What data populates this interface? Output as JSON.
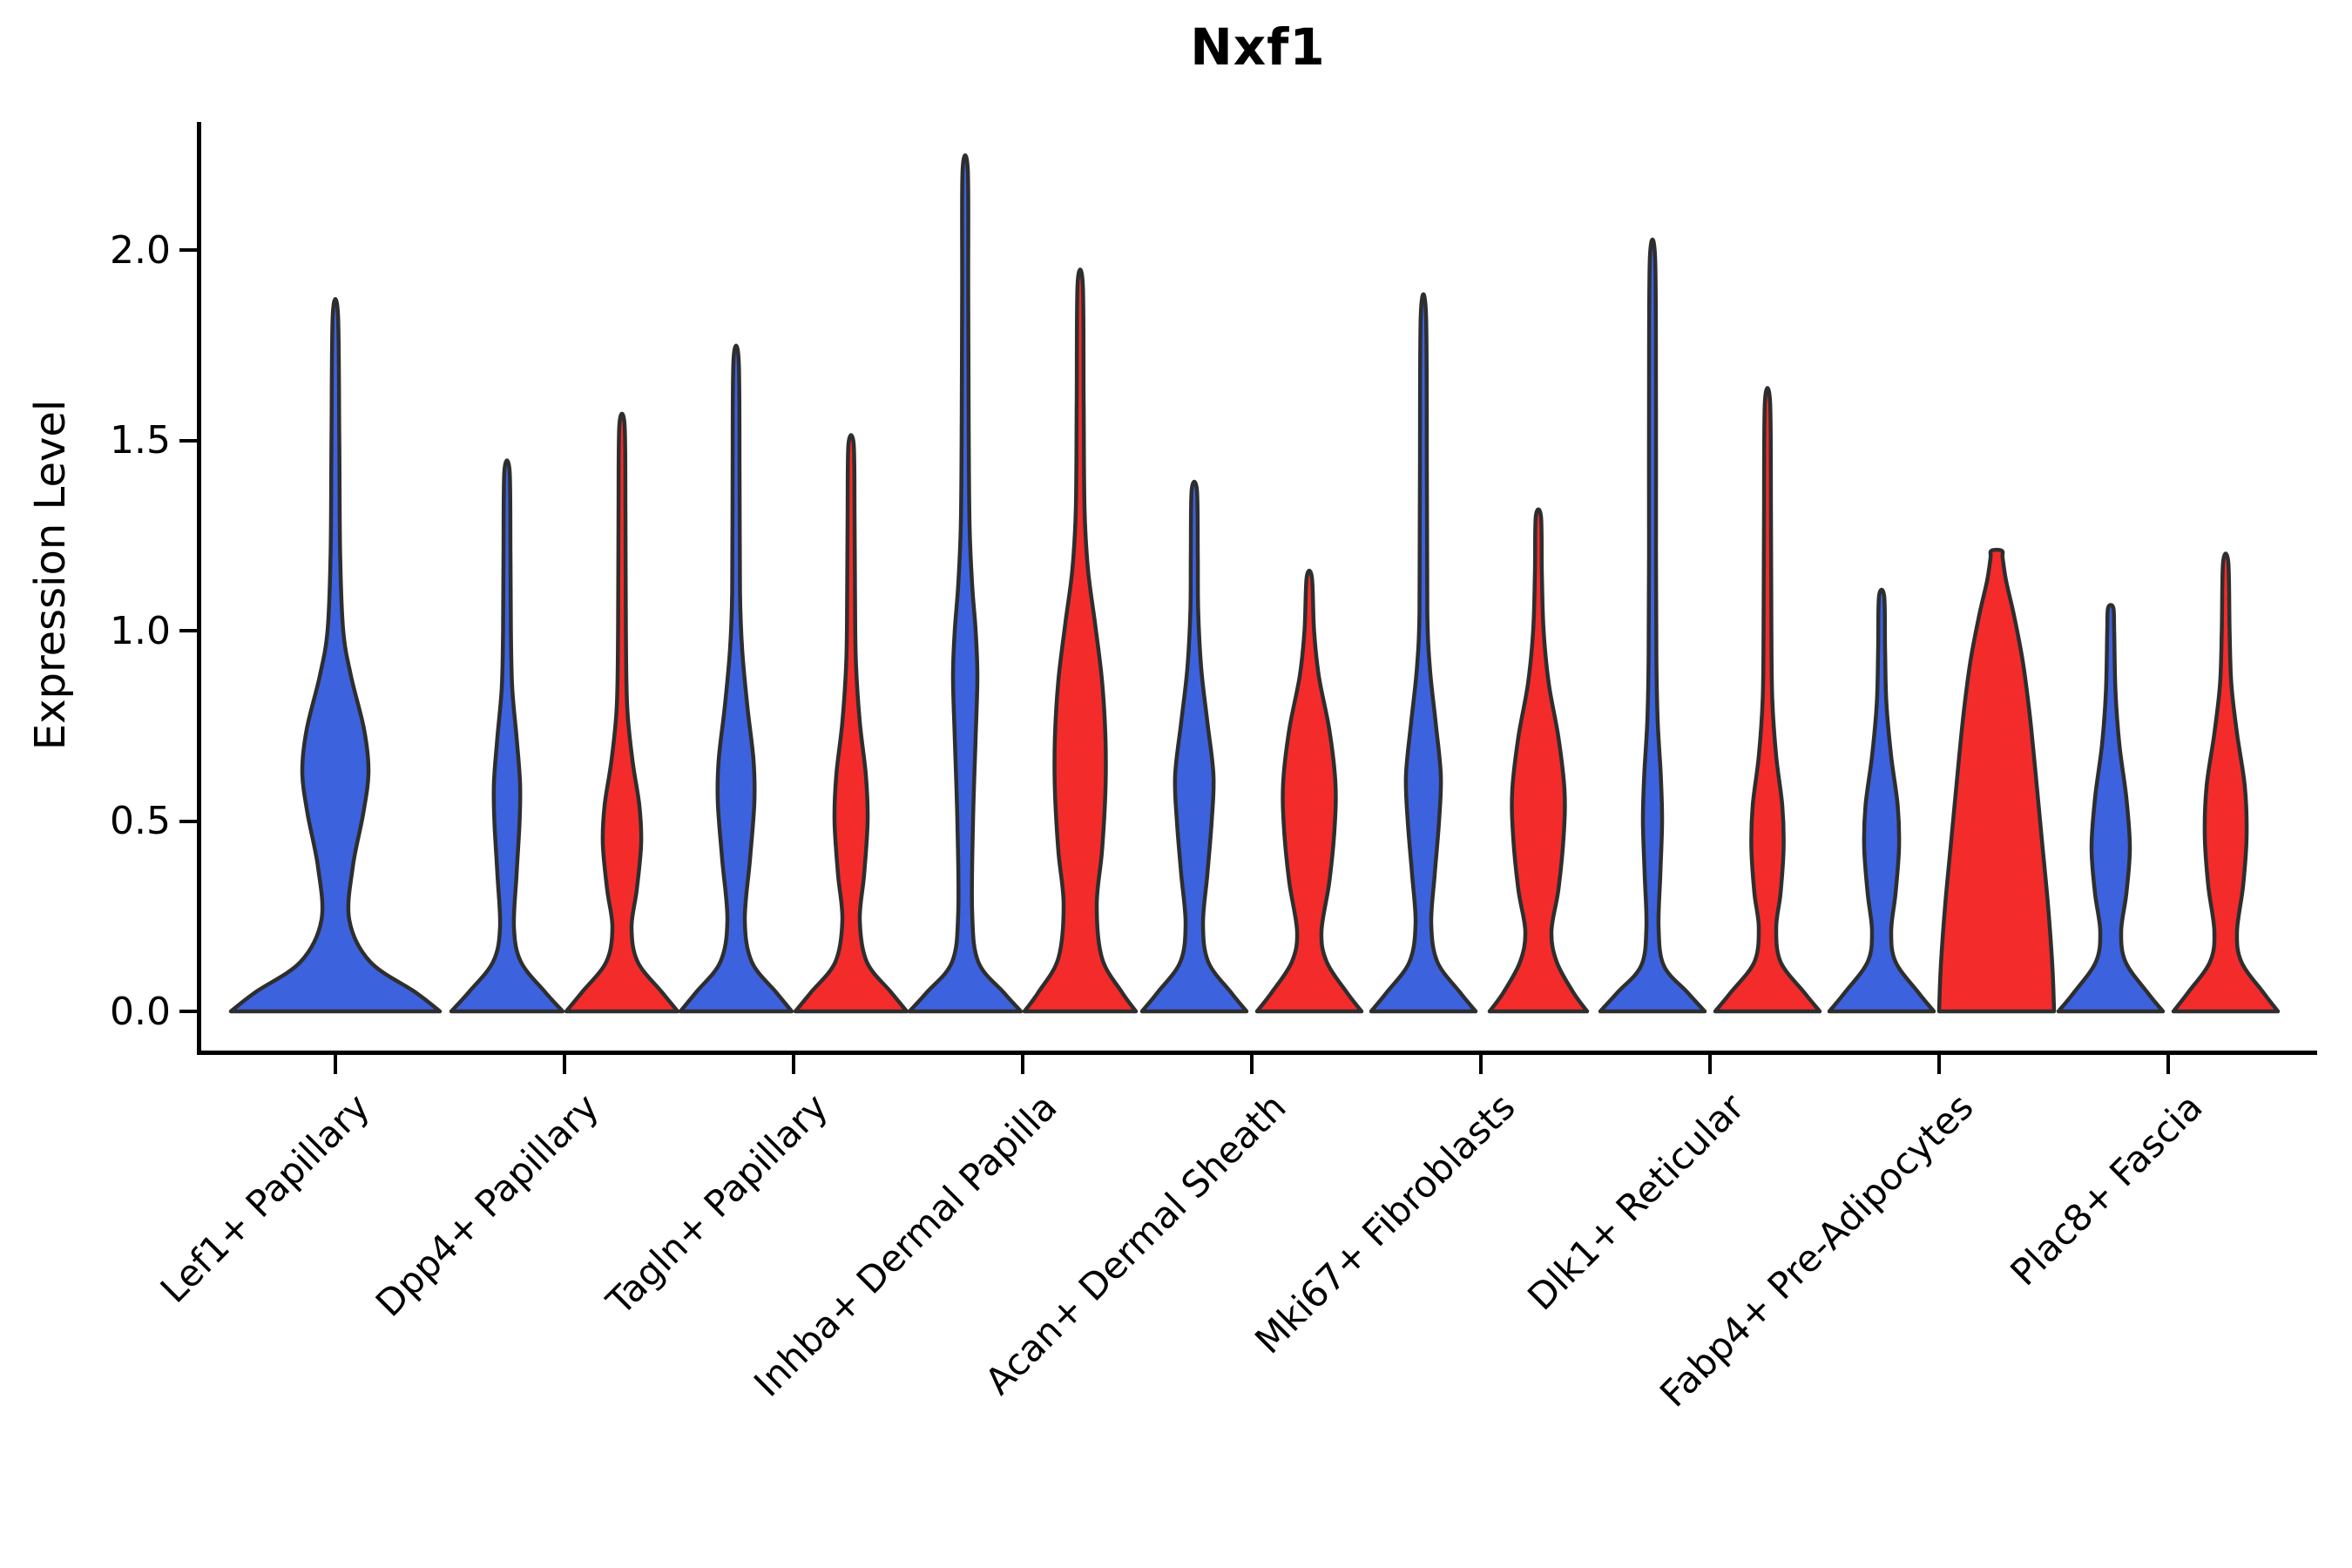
{
  "colors": {
    "blue": "#3D62DE",
    "red": "#F42B2B",
    "outline": "#2E2E2E",
    "axis": "#000000",
    "background": "#FFFFFF"
  },
  "chart_data": {
    "type": "violin",
    "title": "Nxf1",
    "xlabel": "",
    "ylabel": "Expression Level",
    "ylim": [
      0,
      2.34
    ],
    "yticks": [
      0.0,
      0.5,
      1.0,
      1.5,
      2.0
    ],
    "ytick_labels": [
      "0.0",
      "0.5",
      "1.0",
      "1.5",
      "2.0"
    ],
    "legend": "none",
    "grid": false,
    "categories": [
      "Lef1+ Papillary",
      "Dpp4+ Papillary",
      "Tagln+ Papillary",
      "Inhba+ Dermal Papilla",
      "Acan+ Dermal Sheath",
      "Mki67+ Fibroblasts",
      "Dlk1+ Reticular",
      "Fabp4+ Pre-Adipocytes",
      "Plac8+ Fascia"
    ],
    "series": [
      {
        "name": "blue",
        "max_expression": [
          1.83,
          1.42,
          1.71,
          2.21,
          1.37,
          1.83,
          1.98,
          1.09,
          1.06
        ]
      },
      {
        "name": "red",
        "max_expression": [
          null,
          1.54,
          1.49,
          1.91,
          1.14,
          1.3,
          1.6,
          1.21,
          1.18
        ]
      }
    ],
    "violins": [
      {
        "category": "Lef1+ Papillary",
        "group": 0,
        "side": "single",
        "color": "blue",
        "max": 1.83,
        "profile": [
          [
            0,
            120
          ],
          [
            0.05,
            92
          ],
          [
            0.13,
            40
          ],
          [
            0.24,
            16
          ],
          [
            0.38,
            20
          ],
          [
            0.52,
            32
          ],
          [
            0.63,
            38
          ],
          [
            0.74,
            33
          ],
          [
            0.88,
            18
          ],
          [
            1.0,
            9
          ],
          [
            1.2,
            5.5
          ],
          [
            1.5,
            4.5
          ],
          [
            1.83,
            3
          ]
        ]
      },
      {
        "category": "Dpp4+ Papillary",
        "group": 1,
        "side": "left",
        "color": "blue",
        "max": 1.42,
        "profile": [
          [
            0,
            64
          ],
          [
            0.05,
            44
          ],
          [
            0.13,
            16
          ],
          [
            0.22,
            8
          ],
          [
            0.36,
            11
          ],
          [
            0.5,
            14.5
          ],
          [
            0.6,
            15
          ],
          [
            0.72,
            11
          ],
          [
            0.85,
            6
          ],
          [
            1.0,
            4.5
          ],
          [
            1.2,
            4
          ],
          [
            1.42,
            3
          ]
        ]
      },
      {
        "category": "Dpp4+ Papillary",
        "group": 1,
        "side": "right",
        "color": "red",
        "max": 1.54,
        "profile": [
          [
            0,
            64
          ],
          [
            0.05,
            46
          ],
          [
            0.13,
            18
          ],
          [
            0.22,
            11
          ],
          [
            0.32,
            17
          ],
          [
            0.44,
            22
          ],
          [
            0.54,
            20
          ],
          [
            0.66,
            12
          ],
          [
            0.8,
            6
          ],
          [
            1.0,
            4.5
          ],
          [
            1.3,
            4
          ],
          [
            1.54,
            3
          ]
        ]
      },
      {
        "category": "Tagln+ Papillary",
        "group": 2,
        "side": "left",
        "color": "blue",
        "max": 1.71,
        "profile": [
          [
            0,
            64
          ],
          [
            0.05,
            46
          ],
          [
            0.13,
            18
          ],
          [
            0.24,
            10
          ],
          [
            0.4,
            16
          ],
          [
            0.55,
            21
          ],
          [
            0.66,
            20
          ],
          [
            0.8,
            13
          ],
          [
            0.95,
            7
          ],
          [
            1.1,
            4.5
          ],
          [
            1.4,
            4
          ],
          [
            1.71,
            3
          ]
        ]
      },
      {
        "category": "Tagln+ Papillary",
        "group": 2,
        "side": "right",
        "color": "red",
        "max": 1.49,
        "profile": [
          [
            0,
            64
          ],
          [
            0.05,
            46
          ],
          [
            0.13,
            18
          ],
          [
            0.24,
            10
          ],
          [
            0.36,
            15
          ],
          [
            0.5,
            19
          ],
          [
            0.62,
            17
          ],
          [
            0.76,
            10
          ],
          [
            0.92,
            5.5
          ],
          [
            1.1,
            4.5
          ],
          [
            1.3,
            4
          ],
          [
            1.49,
            3
          ]
        ]
      },
      {
        "category": "Inhba+ Dermal Papilla",
        "group": 3,
        "side": "left",
        "color": "blue",
        "max": 2.21,
        "profile": [
          [
            0,
            64
          ],
          [
            0.05,
            44
          ],
          [
            0.13,
            15
          ],
          [
            0.26,
            8
          ],
          [
            0.5,
            9
          ],
          [
            0.72,
            12
          ],
          [
            0.88,
            14
          ],
          [
            1.0,
            12
          ],
          [
            1.12,
            8
          ],
          [
            1.28,
            5
          ],
          [
            1.55,
            4
          ],
          [
            1.9,
            3.5
          ],
          [
            2.21,
            3
          ]
        ]
      },
      {
        "category": "Inhba+ Dermal Papilla",
        "group": 3,
        "side": "right",
        "color": "red",
        "max": 1.91,
        "profile": [
          [
            0,
            64
          ],
          [
            0.05,
            48
          ],
          [
            0.14,
            25
          ],
          [
            0.28,
            19
          ],
          [
            0.42,
            25
          ],
          [
            0.58,
            29
          ],
          [
            0.72,
            29
          ],
          [
            0.87,
            25
          ],
          [
            1.02,
            17
          ],
          [
            1.16,
            9
          ],
          [
            1.32,
            5
          ],
          [
            1.6,
            4
          ],
          [
            1.91,
            3
          ]
        ]
      },
      {
        "category": "Acan+ Dermal Sheath",
        "group": 4,
        "side": "left",
        "color": "blue",
        "max": 1.37,
        "profile": [
          [
            0,
            60
          ],
          [
            0.05,
            42
          ],
          [
            0.13,
            16
          ],
          [
            0.23,
            10
          ],
          [
            0.36,
            15
          ],
          [
            0.5,
            20
          ],
          [
            0.62,
            22
          ],
          [
            0.76,
            15
          ],
          [
            0.9,
            8
          ],
          [
            1.05,
            4.5
          ],
          [
            1.2,
            4
          ],
          [
            1.37,
            3
          ]
        ]
      },
      {
        "category": "Acan+ Dermal Sheath",
        "group": 4,
        "side": "right",
        "color": "red",
        "max": 1.14,
        "profile": [
          [
            0,
            60
          ],
          [
            0.05,
            43
          ],
          [
            0.13,
            20
          ],
          [
            0.21,
            14
          ],
          [
            0.34,
            23
          ],
          [
            0.48,
            29
          ],
          [
            0.6,
            30
          ],
          [
            0.74,
            23
          ],
          [
            0.88,
            11
          ],
          [
            1.0,
            5.5
          ],
          [
            1.14,
            3
          ]
        ]
      },
      {
        "category": "Mki67+ Fibroblasts",
        "group": 5,
        "side": "left",
        "color": "blue",
        "max": 1.83,
        "profile": [
          [
            0,
            60
          ],
          [
            0.05,
            42
          ],
          [
            0.13,
            16
          ],
          [
            0.23,
            9
          ],
          [
            0.36,
            13
          ],
          [
            0.5,
            18
          ],
          [
            0.62,
            20
          ],
          [
            0.76,
            14
          ],
          [
            0.9,
            7.5
          ],
          [
            1.05,
            4.5
          ],
          [
            1.4,
            4
          ],
          [
            1.83,
            3
          ]
        ]
      },
      {
        "category": "Mki67+ Fibroblasts",
        "group": 5,
        "side": "right",
        "color": "red",
        "max": 1.3,
        "profile": [
          [
            0,
            56
          ],
          [
            0.05,
            40
          ],
          [
            0.13,
            21
          ],
          [
            0.21,
            15
          ],
          [
            0.32,
            23
          ],
          [
            0.46,
            29
          ],
          [
            0.58,
            30
          ],
          [
            0.72,
            23
          ],
          [
            0.86,
            12
          ],
          [
            1.0,
            6
          ],
          [
            1.15,
            4
          ],
          [
            1.3,
            3
          ]
        ]
      },
      {
        "category": "Dlk1+ Reticular",
        "group": 6,
        "side": "left",
        "color": "blue",
        "max": 1.98,
        "profile": [
          [
            0,
            60
          ],
          [
            0.05,
            40
          ],
          [
            0.12,
            13
          ],
          [
            0.22,
            7
          ],
          [
            0.36,
            9
          ],
          [
            0.5,
            11
          ],
          [
            0.62,
            9.5
          ],
          [
            0.76,
            6
          ],
          [
            0.92,
            4.5
          ],
          [
            1.2,
            4
          ],
          [
            1.6,
            4
          ],
          [
            1.98,
            3
          ]
        ]
      },
      {
        "category": "Dlk1+ Reticular",
        "group": 6,
        "side": "right",
        "color": "red",
        "max": 1.6,
        "profile": [
          [
            0,
            60
          ],
          [
            0.05,
            42
          ],
          [
            0.13,
            15
          ],
          [
            0.22,
            10
          ],
          [
            0.31,
            15
          ],
          [
            0.43,
            18.5
          ],
          [
            0.54,
            17
          ],
          [
            0.67,
            10
          ],
          [
            0.82,
            5.5
          ],
          [
            1.0,
            4.5
          ],
          [
            1.3,
            4
          ],
          [
            1.6,
            3
          ]
        ]
      },
      {
        "category": "Fabp4+ Pre-Adipocytes",
        "group": 7,
        "side": "left",
        "color": "blue",
        "max": 1.09,
        "profile": [
          [
            0,
            60
          ],
          [
            0.05,
            42
          ],
          [
            0.13,
            16
          ],
          [
            0.21,
            11
          ],
          [
            0.31,
            16
          ],
          [
            0.43,
            20
          ],
          [
            0.54,
            18.5
          ],
          [
            0.67,
            11
          ],
          [
            0.81,
            5.5
          ],
          [
            0.95,
            4
          ],
          [
            1.09,
            3
          ]
        ]
      },
      {
        "category": "Fabp4+ Pre-Adipocytes",
        "group": 7,
        "side": "right",
        "color": "red",
        "max": 1.21,
        "profile": [
          [
            0,
            66
          ],
          [
            0.12,
            64
          ],
          [
            0.28,
            59
          ],
          [
            0.45,
            52
          ],
          [
            0.62,
            45
          ],
          [
            0.78,
            38
          ],
          [
            0.92,
            30
          ],
          [
            1.04,
            20
          ],
          [
            1.13,
            11
          ],
          [
            1.19,
            7
          ],
          [
            1.21,
            6
          ]
        ]
      },
      {
        "category": "Plac8+ Fascia",
        "group": 8,
        "side": "left",
        "color": "blue",
        "max": 1.06,
        "profile": [
          [
            0,
            60
          ],
          [
            0.05,
            42
          ],
          [
            0.13,
            17
          ],
          [
            0.21,
            12
          ],
          [
            0.31,
            18
          ],
          [
            0.43,
            22
          ],
          [
            0.56,
            18
          ],
          [
            0.7,
            10
          ],
          [
            0.84,
            5.5
          ],
          [
            1.0,
            4
          ],
          [
            1.06,
            3
          ]
        ]
      },
      {
        "category": "Plac8+ Fascia",
        "group": 8,
        "side": "right",
        "color": "red",
        "max": 1.18,
        "profile": [
          [
            0,
            60
          ],
          [
            0.05,
            43
          ],
          [
            0.13,
            18
          ],
          [
            0.21,
            13
          ],
          [
            0.33,
            20
          ],
          [
            0.46,
            24
          ],
          [
            0.59,
            22
          ],
          [
            0.73,
            13
          ],
          [
            0.86,
            6.5
          ],
          [
            1.0,
            4.5
          ],
          [
            1.18,
            3
          ]
        ]
      }
    ]
  }
}
